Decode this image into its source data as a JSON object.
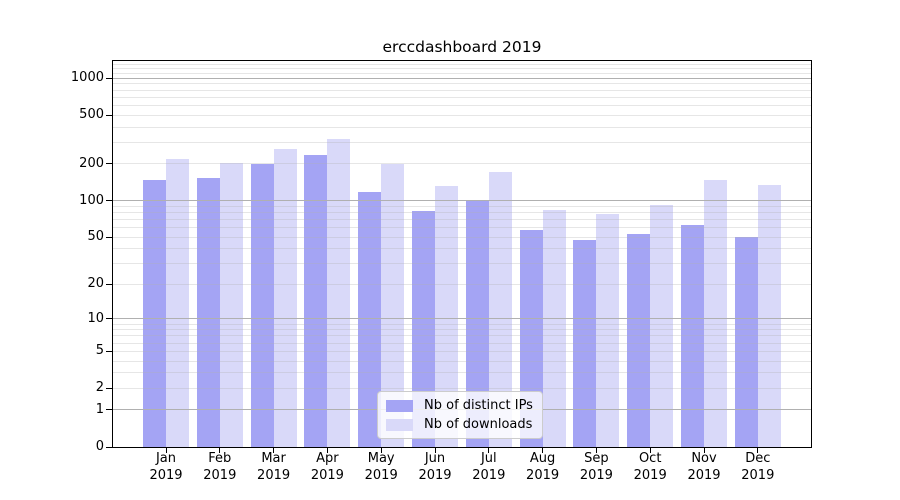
{
  "title": "erccdashboard 2019",
  "chart_data": {
    "type": "bar",
    "title": "erccdashboard 2019",
    "categories": [
      "Jan",
      "Feb",
      "Mar",
      "Apr",
      "May",
      "Jun",
      "Jul",
      "Aug",
      "Sep",
      "Oct",
      "Nov",
      "Dec"
    ],
    "x_year_label": "2019",
    "series": [
      {
        "name": "Nb of distinct IPs",
        "color": "#a4a4f4",
        "values": [
          147,
          152,
          201,
          237,
          118,
          82,
          101,
          57,
          47,
          53,
          63,
          50
        ]
      },
      {
        "name": "Nb of downloads",
        "color": "#d9d9f9",
        "values": [
          219,
          205,
          267,
          319,
          201,
          132,
          172,
          84,
          77,
          92,
          148,
          135
        ]
      }
    ],
    "xlabel": "",
    "ylabel": "",
    "yscale": "log1p",
    "ylim": [
      0,
      1380
    ],
    "ytick_values": [
      0,
      1,
      2,
      5,
      10,
      20,
      50,
      100,
      200,
      500,
      1000
    ],
    "grid": "both",
    "grid_major_values": [
      1,
      10,
      100,
      1000
    ],
    "grid_minor_values": [
      2,
      3,
      4,
      5,
      6,
      7,
      8,
      9,
      20,
      30,
      40,
      50,
      60,
      70,
      80,
      90,
      200,
      300,
      400,
      500,
      600,
      700,
      800,
      900,
      1100,
      1200,
      1300
    ],
    "legend_position": "lower-center",
    "colors": {
      "grid_major": "#b0b0b0",
      "grid_minor_rgba": "rgba(176,176,176,0.32)",
      "spine": "#000000",
      "text": "#000000",
      "legend_border": "#cccccc",
      "legend_bg": "rgba(255,255,255,0.8)"
    }
  }
}
